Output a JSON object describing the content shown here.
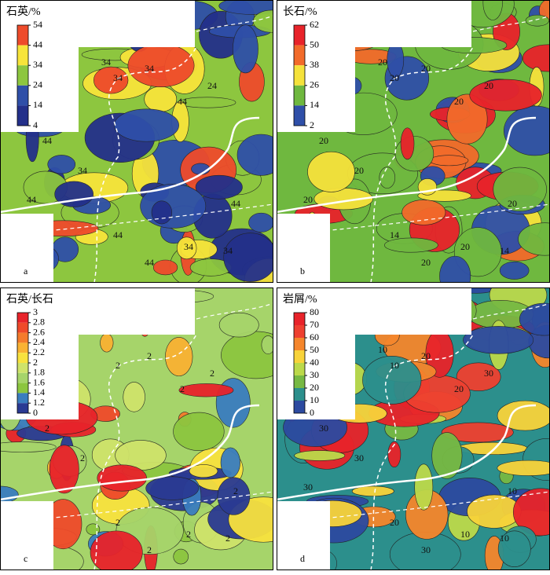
{
  "panels": [
    {
      "letter": "a",
      "legend_title": "石英/%",
      "legend_ticks": [
        54,
        44,
        34,
        24,
        14,
        4
      ],
      "colors": [
        "#ee4b2b",
        "#f7e43a",
        "#8dc63f",
        "#2f4fa8",
        "#23308a"
      ],
      "base": "#8dc63f",
      "contour_labels": [
        "34",
        "34",
        "44",
        "44",
        "34",
        "44",
        "44",
        "34",
        "44",
        "34",
        "24",
        "34",
        "44"
      ]
    },
    {
      "letter": "b",
      "legend_title": "长石/%",
      "legend_ticks": [
        62,
        50,
        38,
        26,
        14,
        2
      ],
      "colors": [
        "#e8232a",
        "#f26b2a",
        "#f5e23b",
        "#6fb83f",
        "#2f4fa8"
      ],
      "base": "#6fb83f",
      "contour_labels": [
        "20",
        "20",
        "20",
        "20",
        "20",
        "14",
        "20",
        "20",
        "20",
        "14",
        "20",
        "20",
        "20"
      ]
    },
    {
      "letter": "c",
      "legend_title": "石英/长石",
      "legend_ticks": [
        3,
        2.8,
        2.6,
        2.4,
        2.2,
        2,
        1.8,
        1.6,
        1.4,
        1.2,
        0
      ],
      "colors": [
        "#e8232a",
        "#ef4a2a",
        "#f47b2c",
        "#f9b233",
        "#f8e23e",
        "#cfe36a",
        "#a6d46a",
        "#8cc63f",
        "#3a7dbf",
        "#2a3a93"
      ],
      "base": "#a6d46a",
      "contour_labels": [
        "2",
        "2",
        "2",
        "2",
        "2",
        "2",
        "2",
        "2",
        "2",
        "2",
        "2"
      ]
    },
    {
      "letter": "d",
      "legend_title": "岩屑/%",
      "legend_ticks": [
        80,
        70,
        60,
        50,
        40,
        30,
        20,
        10,
        0
      ],
      "colors": [
        "#e8232a",
        "#ee4030",
        "#f5862c",
        "#f8d33a",
        "#bcd94a",
        "#77b943",
        "#2c8f8c",
        "#2c4aa0"
      ],
      "base": "#2c8f8c",
      "contour_labels": [
        "10",
        "20",
        "20",
        "30",
        "30",
        "20",
        "30",
        "10",
        "10",
        "10",
        "30",
        "10",
        "30"
      ]
    }
  ]
}
